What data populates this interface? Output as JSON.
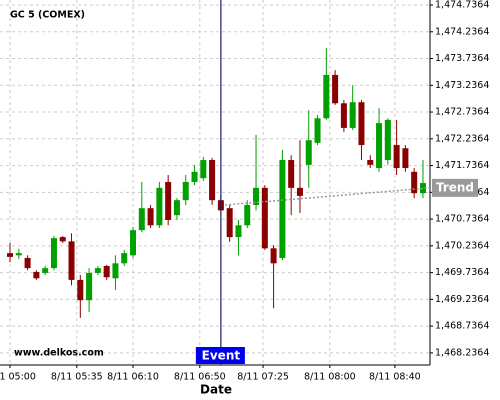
{
  "chart_data": {
    "type": "candlestick",
    "title": "GC 5 (COMEX)",
    "watermark": "www.delkos.com",
    "x_label": "Date",
    "open": [
      1470.1,
      1470.06,
      1470.01,
      1469.75,
      1469.73,
      1469.82,
      1470.4,
      1470.32,
      1469.6,
      1469.22,
      1469.73,
      1469.86,
      1469.63,
      1469.91,
      1470.06,
      1470.53,
      1470.94,
      1470.62,
      1471.43,
      1470.81,
      1471.09,
      1471.43,
      1471.5,
      1471.84,
      1471.09,
      1470.94,
      1470.4,
      1470.62,
      1471.0,
      1471.32,
      1470.19,
      1470.01,
      1471.84,
      1471.32,
      1471.75,
      1472.16,
      1472.62,
      1473.43,
      1472.9,
      1472.44,
      1472.92,
      1471.84,
      1471.69,
      1471.84,
      1472.12,
      1472.06,
      1471.62,
      1471.22
    ],
    "high": [
      1470.29,
      1470.18,
      1470.06,
      1469.78,
      1469.86,
      1470.42,
      1470.42,
      1470.47,
      1469.69,
      1469.82,
      1469.86,
      1469.88,
      1470.06,
      1470.16,
      1470.59,
      1471.43,
      1471.0,
      1471.43,
      1471.56,
      1471.13,
      1471.56,
      1471.75,
      1471.9,
      1471.88,
      1471.18,
      1471.0,
      1470.72,
      1471.09,
      1472.31,
      1471.37,
      1470.25,
      1472.03,
      1471.93,
      1472.21,
      1472.77,
      1472.68,
      1473.93,
      1473.52,
      1472.96,
      1473.24,
      1472.96,
      1471.93,
      1472.81,
      1472.62,
      1472.59,
      1472.12,
      1471.69,
      1471.84
    ],
    "low": [
      1469.93,
      1469.99,
      1469.78,
      1469.6,
      1469.69,
      1469.78,
      1470.29,
      1469.5,
      1468.89,
      1469.0,
      1469.69,
      1469.6,
      1469.41,
      1469.86,
      1470.01,
      1470.49,
      1470.57,
      1470.57,
      1470.62,
      1470.72,
      1471.0,
      1471.37,
      1471.45,
      1471.0,
      1470.81,
      1470.31,
      1470.06,
      1470.57,
      1470.9,
      1470.16,
      1469.07,
      1469.97,
      1470.81,
      1470.85,
      1471.32,
      1472.12,
      1472.59,
      1472.87,
      1472.36,
      1472.4,
      1471.84,
      1471.69,
      1471.62,
      1471.75,
      1471.56,
      1471.62,
      1471.13,
      1471.13
    ],
    "close": [
      1470.03,
      1470.1,
      1469.82,
      1469.63,
      1469.82,
      1470.38,
      1470.32,
      1469.6,
      1469.22,
      1469.73,
      1469.82,
      1469.65,
      1469.91,
      1470.1,
      1470.53,
      1470.94,
      1470.62,
      1471.32,
      1470.72,
      1471.09,
      1471.43,
      1471.62,
      1471.84,
      1471.09,
      1470.9,
      1470.4,
      1470.62,
      1471.0,
      1471.32,
      1470.19,
      1469.91,
      1471.84,
      1471.32,
      1471.17,
      1472.21,
      1472.62,
      1473.43,
      1472.9,
      1472.44,
      1472.92,
      1472.12,
      1471.75,
      1472.53,
      1472.59,
      1471.69,
      1471.69,
      1471.22,
      1471.41
    ],
    "up_color": "#00a000",
    "down_color": "#8b0000",
    "xlim": [
      -1.14,
      47.8
    ],
    "xticks": [
      {
        "value": 0,
        "label": "8/11 05:00"
      },
      {
        "value": 7.6,
        "label": "8/11 05:35"
      },
      {
        "value": 14.0,
        "label": "8/11 06:10"
      },
      {
        "value": 21.6,
        "label": "8/11 06:50"
      },
      {
        "value": 28.8,
        "label": "8/11 07:25"
      },
      {
        "value": 36.4,
        "label": "8/11 08:00"
      },
      {
        "value": 43.8,
        "label": "8/11 08:40"
      }
    ],
    "ylim": [
      1468.01,
      1474.83
    ],
    "yticks": [
      {
        "value": 1474.7364,
        "label": "1,474.7364"
      },
      {
        "value": 1474.2364,
        "label": "1,474.2364"
      },
      {
        "value": 1473.7364,
        "label": "1,473.7364"
      },
      {
        "value": 1473.2364,
        "label": "1,473.2364"
      },
      {
        "value": 1472.7364,
        "label": "1,472.7364"
      },
      {
        "value": 1472.2364,
        "label": "1,472.2364"
      },
      {
        "value": 1471.7364,
        "label": "1,471.7364"
      },
      {
        "value": 1471.2364,
        "label": "1,471.2364"
      },
      {
        "value": 1470.7364,
        "label": "1,470.7364"
      },
      {
        "value": 1470.2364,
        "label": "1,470.2364"
      },
      {
        "value": 1469.7364,
        "label": "1,469.7364"
      },
      {
        "value": 1469.2364,
        "label": "1,469.2364"
      },
      {
        "value": 1468.7364,
        "label": "1,468.7364"
      },
      {
        "value": 1468.2364,
        "label": "1,468.2364"
      }
    ],
    "grid": true,
    "trend": {
      "name": "Trend",
      "x": [
        24.5,
        47.8
      ],
      "values": [
        1471.0,
        1471.32
      ],
      "color": "#999999"
    },
    "event": {
      "label": "Event",
      "x": 24.0,
      "color": "#1a1a6e"
    }
  }
}
